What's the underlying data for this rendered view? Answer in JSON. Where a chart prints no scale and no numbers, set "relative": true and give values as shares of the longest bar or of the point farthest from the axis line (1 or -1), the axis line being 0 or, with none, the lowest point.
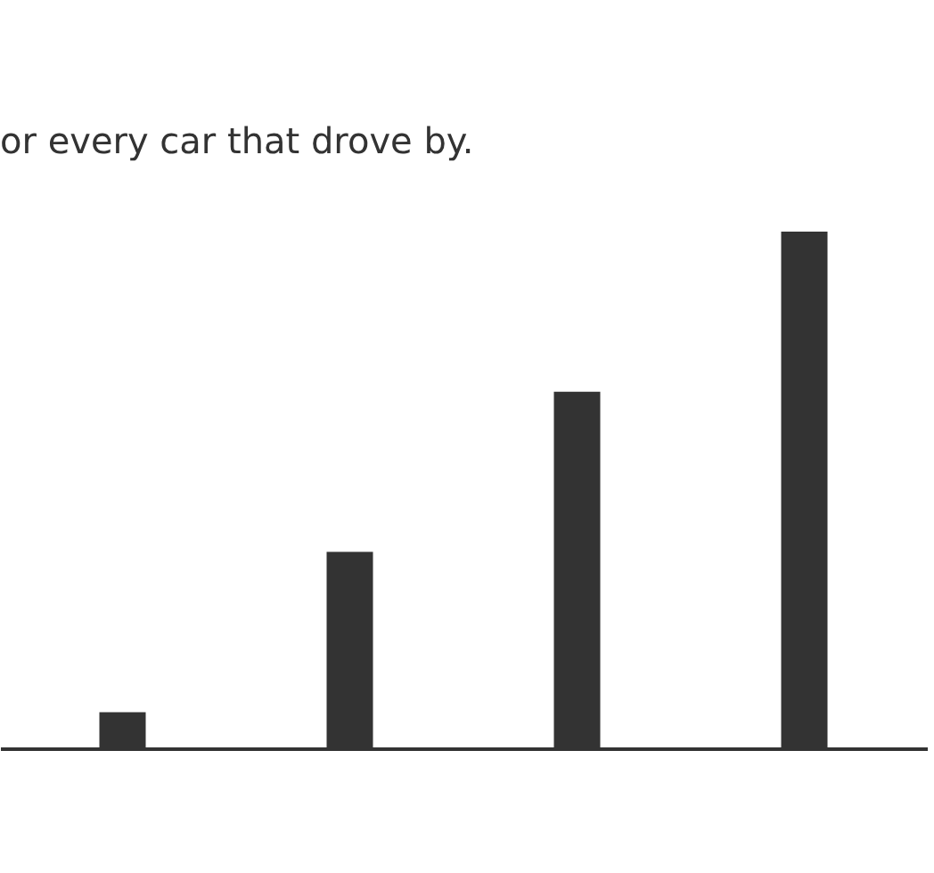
{
  "chart_data": {
    "type": "bar",
    "relative": true,
    "categories": [
      null,
      null,
      null,
      null
    ],
    "values": [
      0.07,
      0.38,
      0.69,
      1
    ],
    "color": "#333333",
    "annotations": [
      "or every car that drove by."
    ]
  }
}
